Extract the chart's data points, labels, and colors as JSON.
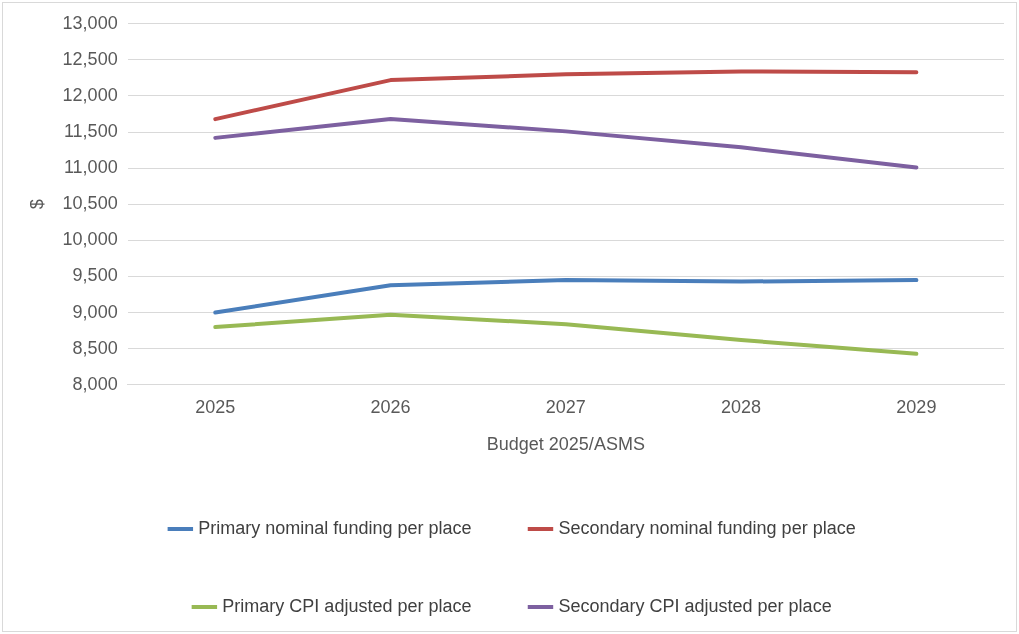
{
  "chart_data": {
    "type": "line",
    "xlabel": "Budget 2025/ASMS",
    "ylabel": "$",
    "categories": [
      "2025",
      "2026",
      "2027",
      "2028",
      "2029"
    ],
    "series": [
      {
        "name": "Primary nominal funding per place",
        "color": "#4a7ebb",
        "values": [
          9000,
          9380,
          9450,
          9430,
          9450
        ]
      },
      {
        "name": "Secondary nominal funding per place",
        "color": "#be4b48",
        "values": [
          11680,
          12220,
          12300,
          12340,
          12330
        ]
      },
      {
        "name": "Primary CPI adjusted per place",
        "color": "#98b954",
        "values": [
          8800,
          8970,
          8840,
          8620,
          8430
        ]
      },
      {
        "name": "Secondary CPI adjusted per place",
        "color": "#7d60a0",
        "values": [
          11420,
          11680,
          11510,
          11290,
          11010
        ]
      }
    ],
    "ylim": [
      8000,
      13000
    ],
    "yticks": [
      {
        "value": 8000,
        "label": "8,000"
      },
      {
        "value": 8500,
        "label": "8,500"
      },
      {
        "value": 9000,
        "label": "9,000"
      },
      {
        "value": 9500,
        "label": "9,500"
      },
      {
        "value": 10000,
        "label": "10,000"
      },
      {
        "value": 10500,
        "label": "10,500"
      },
      {
        "value": 11000,
        "label": "11,000"
      },
      {
        "value": 11500,
        "label": "11,500"
      },
      {
        "value": 12000,
        "label": "12,000"
      },
      {
        "value": 12500,
        "label": "12,500"
      },
      {
        "value": 13000,
        "label": "13,000"
      }
    ],
    "grid": "y",
    "legend": "bottom",
    "marker": "none",
    "line_style": "solid"
  }
}
